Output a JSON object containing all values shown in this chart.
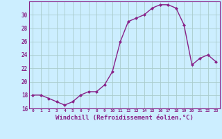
{
  "x": [
    0,
    1,
    2,
    3,
    4,
    5,
    6,
    7,
    8,
    9,
    10,
    11,
    12,
    13,
    14,
    15,
    16,
    17,
    18,
    19,
    20,
    21,
    22,
    23
  ],
  "y": [
    18.0,
    18.0,
    17.5,
    17.0,
    16.5,
    17.0,
    18.0,
    18.5,
    18.5,
    19.5,
    21.5,
    26.0,
    29.0,
    29.5,
    30.0,
    31.0,
    31.5,
    31.5,
    31.0,
    28.5,
    22.5,
    23.5,
    24.0,
    23.0
  ],
  "line_color": "#882288",
  "marker": "D",
  "marker_size": 2.0,
  "linewidth": 1.0,
  "xlabel": "Windchill (Refroidissement éolien,°C)",
  "xlim": [
    -0.5,
    23.5
  ],
  "ylim": [
    16,
    32
  ],
  "yticks": [
    16,
    18,
    20,
    22,
    24,
    26,
    28,
    30
  ],
  "xticks": [
    0,
    1,
    2,
    3,
    4,
    5,
    6,
    7,
    8,
    9,
    10,
    11,
    12,
    13,
    14,
    15,
    16,
    17,
    18,
    19,
    20,
    21,
    22,
    23
  ],
  "xtick_labels": [
    "0",
    "1",
    "2",
    "3",
    "4",
    "5",
    "6",
    "7",
    "8",
    "9",
    "10",
    "11",
    "12",
    "13",
    "14",
    "15",
    "16",
    "17",
    "18",
    "19",
    "20",
    "21",
    "22",
    "23"
  ],
  "background_color": "#cceeff",
  "grid_color": "#aacccc",
  "tick_color": "#882288",
  "label_color": "#882288",
  "spine_color": "#882288"
}
